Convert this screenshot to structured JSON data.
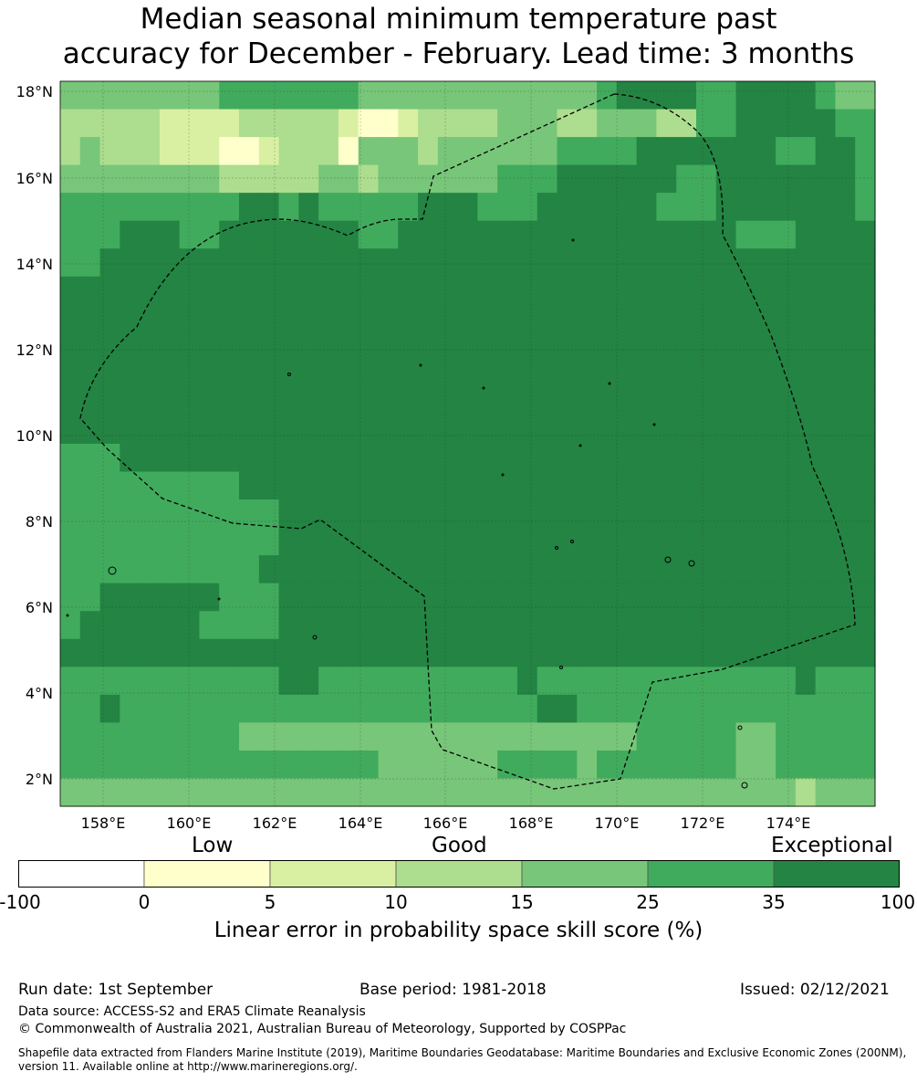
{
  "title_line1": "Median seasonal minimum temperature past",
  "title_line2": "accuracy for December - February. Lead time: 3 months",
  "map": {
    "lon_labels": [
      "158°E",
      "160°E",
      "162°E",
      "164°E",
      "166°E",
      "168°E",
      "170°E",
      "172°E",
      "174°E"
    ],
    "lat_labels": [
      "18°N",
      "16°N",
      "14°N",
      "12°N",
      "10°N",
      "8°N",
      "6°N",
      "4°N",
      "2°N"
    ],
    "boundary_style": "dashed black (EEZ boundary)",
    "grid": "dotted gridlines",
    "palette": [
      "#ffffff",
      "#ffffcc",
      "#d9f0a3",
      "#addd8e",
      "#78c679",
      "#41ab5d",
      "#238443"
    ],
    "cell_class_rows": [
      "44444444555555544444444444456666556666544",
      "33333222233333211233334443344433556666655",
      "34333222112333144434444445555666666655665",
      "44444444333334434444445556666665566666665",
      "55555555566565555566655566666655566666665",
      "55566655666666655666666666666666665556666",
      "55666666666666666666666666666666666666666",
      "66666666666666666666666666666666666666666",
      "66666666666666666666666666666666666666666",
      "66666666666666666666666666666666666666666",
      "66666666666666666666666666666666666666666",
      "66666666666666666666666666666666666666666",
      "66666666666666666666666666666666666666666",
      "55566666666666666666666666666666666666666",
      "55555555566666666666666666666666666666666",
      "55555555555666666666666666666666666666666",
      "55555555555666666666666666666666666666666",
      "55555555556666666666666666666666666666666",
      "55666666555666666666666666666666666666666",
      "56666665555666666666666666666666666666666",
      "66666666666666666666666666666666666666666",
      "55555555555665555555555655555555555556555",
      "55655555555555555555555566555555555555555",
      "55555555544444444444444444444555554455555",
      "55555555555555554444445555455555554455555",
      "44444444444444444444444444444444444443444"
    ]
  },
  "colorbar": {
    "category_low": "Low",
    "category_good": "Good",
    "category_exceptional": "Exceptional",
    "ticks": [
      "-100",
      "0",
      "5",
      "10",
      "15",
      "25",
      "35",
      "100"
    ],
    "colors": [
      "#ffffff",
      "#ffffcc",
      "#d9f0a3",
      "#addd8e",
      "#78c679",
      "#41ab5d",
      "#238443"
    ],
    "label": "Linear error in probability space skill score (%)"
  },
  "footer": {
    "run_date": "Run date: 1st September",
    "base_period": "Base period: 1981-2018",
    "issued": "Issued: 02/12/2021",
    "data_source": "Data source: ACCESS-S2 and ERA5 Climate Reanalysis",
    "copyright": "© Commonwealth of Australia 2021, Australian Bureau of Meteorology, Supported by COSPPac",
    "shapefile_line1": "Shapefile data extracted from Flanders Marine Institute (2019), Maritime Boundaries Geodatabase: Maritime Boundaries and Exclusive Economic Zones (200NM),",
    "shapefile_line2": "version 11. Available online at http://www.marineregions.org/."
  }
}
